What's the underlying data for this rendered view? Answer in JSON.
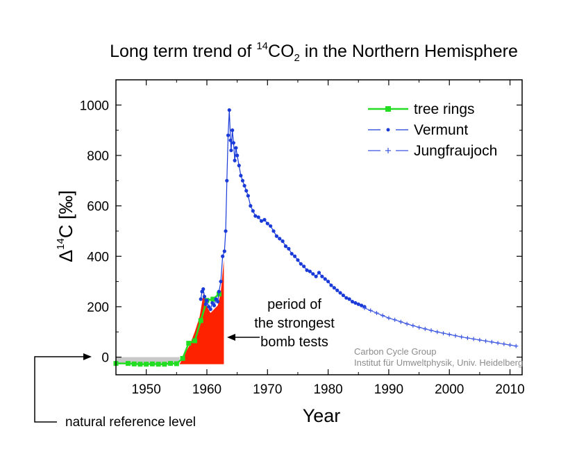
{
  "chart_data": {
    "type": "line",
    "title_prefix": "Long term trend of ",
    "title_sup": "14",
    "title_mid": "CO",
    "title_sub": "2",
    "title_suffix": " in the Northern Hemisphere",
    "xlabel": "Year",
    "ylabel_prefix": "Δ",
    "ylabel_sup": "14",
    "ylabel_suffix": "C [‰]",
    "xlim": [
      1945,
      2012
    ],
    "ylim": [
      -70,
      1100
    ],
    "x_ticks": [
      1950,
      1960,
      1970,
      1980,
      1990,
      2000,
      2010
    ],
    "y_ticks": [
      0,
      200,
      400,
      600,
      800,
      1000
    ],
    "legend_position": "top-right",
    "colors": {
      "tree_rings": "#22dd22",
      "vermunt": "#1a3bd8",
      "jungfraujoch": "#3a55e0",
      "bomb_fill": "#ff2200",
      "reference_band": "#c8c8c8"
    },
    "series": [
      {
        "name": "tree rings",
        "marker": "square",
        "x": [
          1945,
          1947,
          1948,
          1949,
          1950,
          1951,
          1952,
          1953,
          1954,
          1955,
          1956,
          1957,
          1958,
          1959,
          1960,
          1961,
          1962
        ],
        "y": [
          -25,
          -25,
          -27,
          -28,
          -28,
          -27,
          -28,
          -28,
          -25,
          -26,
          -5,
          55,
          65,
          145,
          225,
          230,
          250
        ]
      },
      {
        "name": "Vermunt",
        "marker": "dot",
        "x": [
          1959.0,
          1959.2,
          1959.4,
          1959.6,
          1959.8,
          1960.0,
          1960.3,
          1960.6,
          1960.9,
          1961.2,
          1961.5,
          1961.8,
          1962.0,
          1962.3,
          1962.6,
          1962.9,
          1963.1,
          1963.3,
          1963.5,
          1963.7,
          1963.9,
          1964.0,
          1964.2,
          1964.4,
          1964.6,
          1964.8,
          1965.0,
          1965.3,
          1965.6,
          1965.9,
          1966.2,
          1966.5,
          1966.8,
          1967.2,
          1967.6,
          1968.0,
          1968.5,
          1969.0,
          1969.5,
          1970.0,
          1970.5,
          1971.0,
          1971.5,
          1972.0,
          1972.5,
          1973.0,
          1973.5,
          1974.0,
          1974.5,
          1975.0,
          1975.5,
          1976.0,
          1976.5,
          1977.0,
          1977.5,
          1978.0,
          1978.5,
          1979.0,
          1979.5,
          1980.0,
          1980.5,
          1981.0,
          1981.5,
          1982.0,
          1982.5,
          1983.0,
          1983.5,
          1984.0,
          1984.5,
          1985.0,
          1985.5,
          1986.0
        ],
        "y": [
          230,
          260,
          270,
          240,
          210,
          225,
          200,
          190,
          215,
          205,
          230,
          220,
          260,
          300,
          400,
          420,
          500,
          700,
          880,
          980,
          860,
          820,
          900,
          850,
          780,
          830,
          800,
          760,
          720,
          700,
          680,
          660,
          640,
          600,
          580,
          560,
          555,
          540,
          545,
          530,
          520,
          500,
          480,
          470,
          460,
          440,
          430,
          410,
          400,
          385,
          370,
          360,
          345,
          340,
          330,
          320,
          335,
          320,
          310,
          300,
          285,
          275,
          265,
          255,
          245,
          235,
          230,
          220,
          215,
          210,
          205,
          200
        ]
      },
      {
        "name": "Jungfraujoch",
        "marker": "plus",
        "x": [
          1986.0,
          1987.0,
          1988.0,
          1989.0,
          1990.0,
          1991.0,
          1992.0,
          1993.0,
          1994.0,
          1995.0,
          1996.0,
          1997.0,
          1998.0,
          1999.0,
          2000.0,
          2001.0,
          2002.0,
          2003.0,
          2004.0,
          2005.0,
          2006.0,
          2007.0,
          2008.0,
          2009.0,
          2010.0,
          2011.0
        ],
        "y": [
          195,
          185,
          175,
          165,
          155,
          148,
          140,
          132,
          125,
          118,
          112,
          106,
          100,
          95,
          90,
          85,
          80,
          76,
          72,
          68,
          64,
          60,
          56,
          52,
          48,
          44
        ]
      }
    ],
    "annotations": {
      "bomb_period": [
        "period of",
        "the strongest",
        "bomb tests"
      ],
      "reference": "natural reference level",
      "credit": [
        "Carbon Cycle Group",
        "Institut für Umweltphysik, Univ. Heidelberg"
      ]
    }
  }
}
